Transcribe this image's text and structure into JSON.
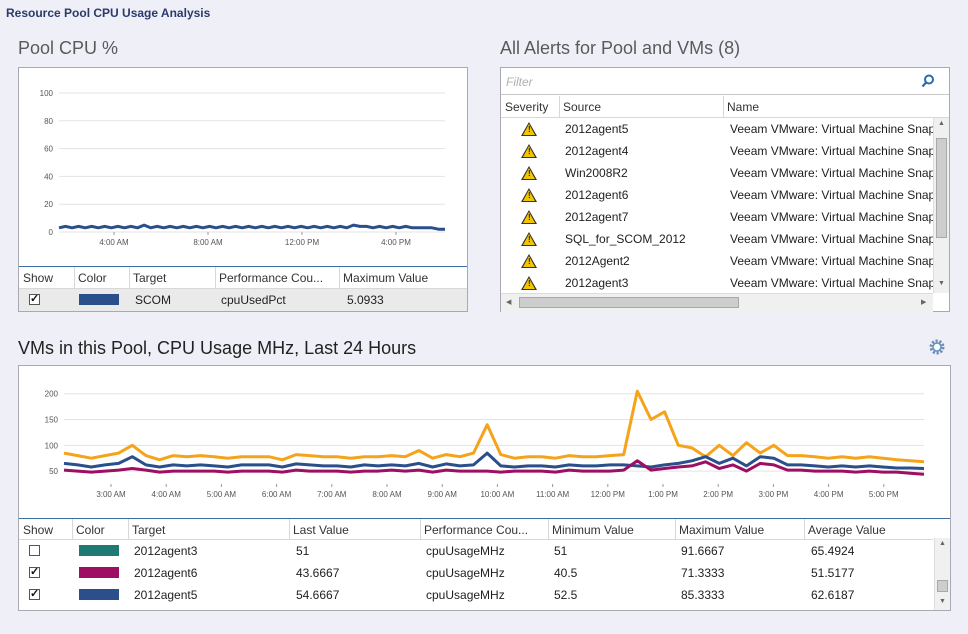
{
  "window": {
    "title": "Resource Pool CPU Usage Analysis"
  },
  "pool_cpu": {
    "title": "Pool CPU %",
    "table": {
      "headers": [
        "Show",
        "Color",
        "Target",
        "Performance Cou...",
        "Maximum Value"
      ],
      "rows": [
        {
          "show": true,
          "color": "#2a4f8a",
          "target": "SCOM",
          "counter": "cpuUsedPct",
          "max": "5.0933"
        }
      ]
    }
  },
  "alerts": {
    "title": "All Alerts for Pool and VMs (8)",
    "filter_placeholder": "Filter",
    "headers": [
      "Severity",
      "Source",
      "Name"
    ],
    "rows": [
      {
        "severity": "warning",
        "source": "2012agent5",
        "name": "Veeam VMware: Virtual Machine Snap"
      },
      {
        "severity": "warning",
        "source": "2012agent4",
        "name": "Veeam VMware: Virtual Machine Snap"
      },
      {
        "severity": "warning",
        "source": "Win2008R2",
        "name": "Veeam VMware: Virtual Machine Snap"
      },
      {
        "severity": "warning",
        "source": "2012agent6",
        "name": "Veeam VMware: Virtual Machine Snap"
      },
      {
        "severity": "warning",
        "source": "2012agent7",
        "name": "Veeam VMware: Virtual Machine Snap"
      },
      {
        "severity": "warning",
        "source": "SQL_for_SCOM_2012",
        "name": "Veeam VMware: Virtual Machine Snap"
      },
      {
        "severity": "warning",
        "source": "2012Agent2",
        "name": "Veeam VMware: Virtual Machine Snap"
      },
      {
        "severity": "warning",
        "source": "2012agent3",
        "name": "Veeam VMware: Virtual Machine Snap"
      }
    ]
  },
  "vms": {
    "title": "VMs in this Pool, CPU Usage MHz, Last 24 Hours",
    "table": {
      "headers": [
        "Show",
        "Color",
        "Target",
        "Last Value",
        "Performance Cou...",
        "Minimum Value",
        "Maximum Value",
        "Average Value"
      ],
      "rows": [
        {
          "show": false,
          "color": "#1e7a72",
          "target": "2012agent3",
          "last": "51",
          "counter": "cpuUsageMHz",
          "min": "51",
          "max": "91.6667",
          "avg": "65.4924"
        },
        {
          "show": true,
          "color": "#9c0f63",
          "target": "2012agent6",
          "last": "43.6667",
          "counter": "cpuUsageMHz",
          "min": "40.5",
          "max": "71.3333",
          "avg": "51.5177"
        },
        {
          "show": true,
          "color": "#2a4f8a",
          "target": "2012agent5",
          "last": "54.6667",
          "counter": "cpuUsageMHz",
          "min": "52.5",
          "max": "85.3333",
          "avg": "62.6187"
        }
      ]
    }
  },
  "chart_data": [
    {
      "type": "line",
      "yticks": [
        0,
        20,
        40,
        60,
        80,
        100
      ],
      "ylim": [
        0,
        100
      ],
      "xticks": [
        "4:00 AM",
        "8:00 AM",
        "12:00 PM",
        "4:00 PM"
      ],
      "series": [
        {
          "color": "#2a4f8a",
          "values": [
            3,
            4,
            3,
            4,
            3,
            4,
            3,
            4,
            3,
            4,
            3,
            4,
            3,
            5,
            3,
            4,
            3,
            4,
            3,
            4,
            3,
            4,
            3,
            4,
            3,
            4,
            3,
            4,
            3,
            4,
            3,
            4,
            3,
            4,
            3,
            4,
            3,
            4,
            3,
            4,
            3,
            4,
            3,
            4,
            3,
            5,
            4,
            4,
            3,
            4,
            3,
            4,
            3,
            4,
            3,
            3,
            3,
            3,
            2,
            2
          ]
        }
      ]
    },
    {
      "type": "line",
      "yticks": [
        50,
        100,
        150,
        200
      ],
      "ylim": [
        25,
        215
      ],
      "xticks": [
        "3:00 AM",
        "4:00 AM",
        "5:00 AM",
        "6:00 AM",
        "7:00 AM",
        "8:00 AM",
        "9:00 AM",
        "10:00 AM",
        "11:00 AM",
        "12:00 PM",
        "1:00 PM",
        "2:00 PM",
        "3:00 PM",
        "4:00 PM",
        "5:00 PM"
      ],
      "series": [
        {
          "color": "#f5a31a",
          "values": [
            85,
            80,
            75,
            80,
            85,
            100,
            80,
            72,
            80,
            78,
            80,
            78,
            75,
            78,
            78,
            78,
            72,
            82,
            80,
            78,
            78,
            75,
            78,
            78,
            80,
            78,
            90,
            75,
            82,
            78,
            85,
            140,
            82,
            75,
            78,
            78,
            75,
            80,
            78,
            78,
            80,
            82,
            205,
            150,
            165,
            100,
            95,
            78,
            100,
            80,
            105,
            85,
            100,
            80,
            80,
            78,
            75,
            78,
            75,
            78,
            75,
            72,
            70,
            68
          ]
        },
        {
          "color": "#2a4f8a",
          "values": [
            65,
            62,
            58,
            62,
            65,
            78,
            62,
            58,
            62,
            60,
            62,
            60,
            58,
            62,
            62,
            62,
            58,
            64,
            62,
            60,
            60,
            58,
            62,
            60,
            62,
            60,
            65,
            58,
            64,
            60,
            62,
            85,
            60,
            58,
            60,
            60,
            58,
            62,
            60,
            60,
            62,
            62,
            60,
            58,
            62,
            65,
            70,
            78,
            65,
            75,
            60,
            78,
            75,
            62,
            62,
            60,
            58,
            60,
            58,
            60,
            58,
            56,
            56,
            55
          ]
        },
        {
          "color": "#9c0f63",
          "values": [
            52,
            50,
            48,
            50,
            52,
            55,
            52,
            48,
            50,
            50,
            50,
            50,
            48,
            50,
            50,
            50,
            48,
            52,
            50,
            50,
            50,
            48,
            50,
            50,
            52,
            50,
            52,
            48,
            52,
            50,
            50,
            50,
            48,
            50,
            50,
            50,
            48,
            52,
            50,
            50,
            50,
            52,
            70,
            52,
            55,
            58,
            60,
            68,
            55,
            62,
            50,
            65,
            62,
            52,
            52,
            50,
            50,
            50,
            48,
            50,
            48,
            48,
            46,
            44
          ]
        }
      ]
    }
  ]
}
